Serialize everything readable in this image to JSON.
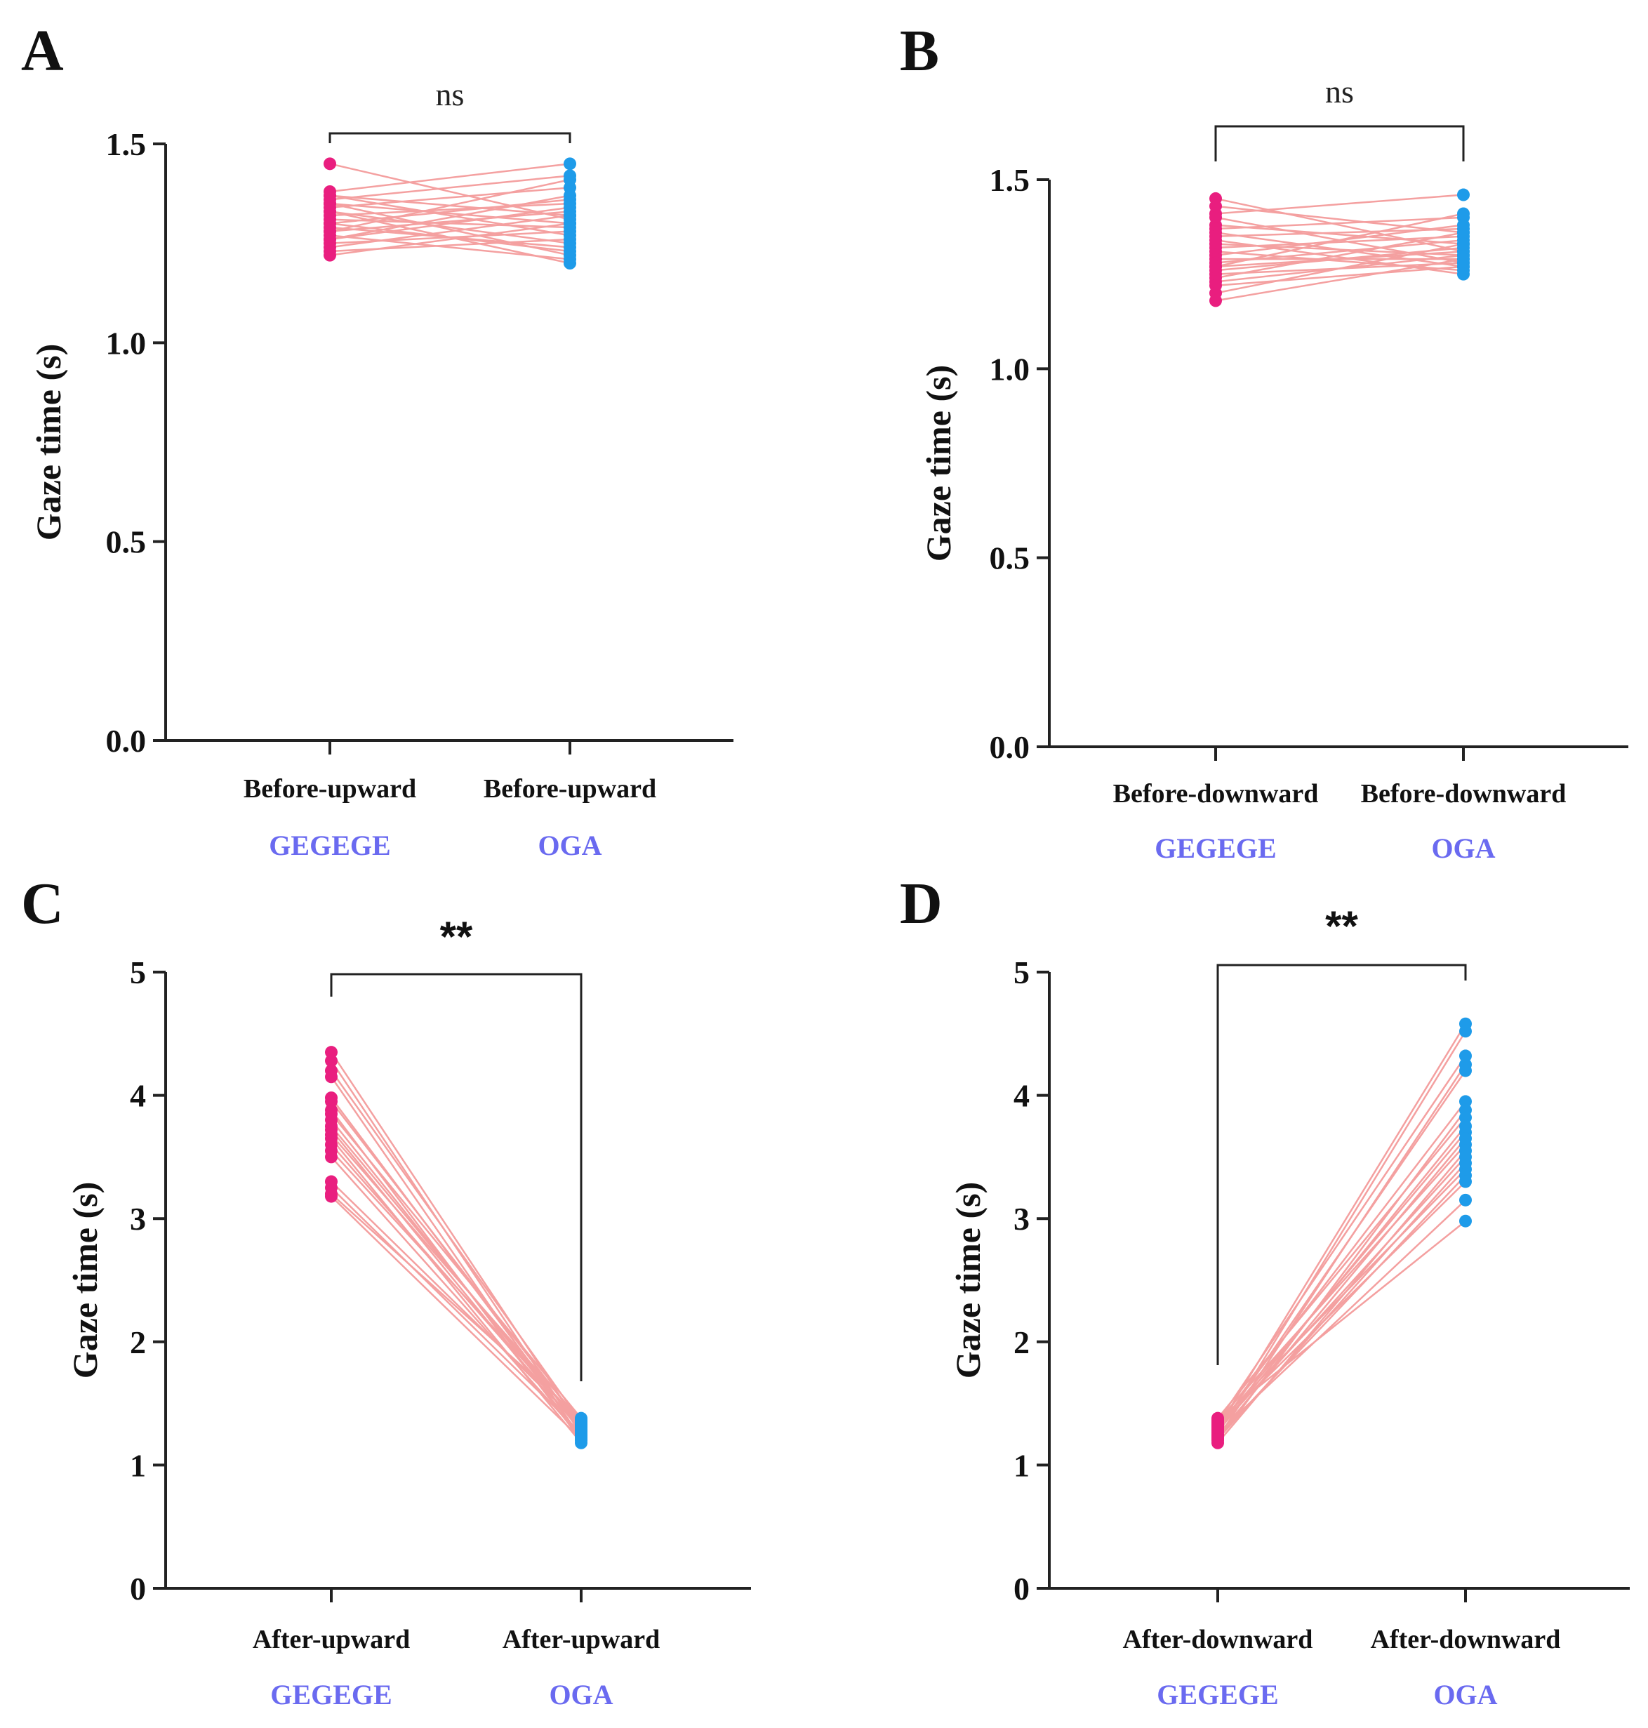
{
  "colors": {
    "line": "#f4a0a0",
    "gegege_point": "#e91e7f",
    "oga_point": "#1e9be9",
    "group_label": "#6a6af0",
    "axis": "#222222"
  },
  "chart_data": [
    {
      "panel": "A",
      "type": "line",
      "xlabel": "",
      "ylabel": "Gaze time (s)",
      "ylim": [
        0,
        1.5
      ],
      "yticks": [
        "0.0",
        "0.5",
        "1.0",
        "1.5"
      ],
      "categories": [
        "Before-upward",
        "Before-upward"
      ],
      "groups": [
        "GEGEGE",
        "OGA"
      ],
      "significance": "ns",
      "pairs": [
        [
          1.45,
          1.31
        ],
        [
          1.38,
          1.45
        ],
        [
          1.37,
          1.27
        ],
        [
          1.36,
          1.42
        ],
        [
          1.35,
          1.22
        ],
        [
          1.34,
          1.39
        ],
        [
          1.33,
          1.25
        ],
        [
          1.32,
          1.35
        ],
        [
          1.31,
          1.29
        ],
        [
          1.3,
          1.36
        ],
        [
          1.29,
          1.24
        ],
        [
          1.28,
          1.33
        ],
        [
          1.27,
          1.21
        ],
        [
          1.26,
          1.37
        ],
        [
          1.25,
          1.28
        ],
        [
          1.24,
          1.32
        ],
        [
          1.23,
          1.26
        ],
        [
          1.22,
          1.3
        ],
        [
          1.33,
          1.2
        ],
        [
          1.28,
          1.41
        ],
        [
          1.35,
          1.3
        ],
        [
          1.3,
          1.23
        ],
        [
          1.26,
          1.34
        ],
        [
          1.37,
          1.32
        ]
      ]
    },
    {
      "panel": "B",
      "type": "line",
      "xlabel": "",
      "ylabel": "Gaze time (s)",
      "ylim": [
        0,
        1.5
      ],
      "yticks": [
        "0.0",
        "0.5",
        "1.0",
        "1.5"
      ],
      "categories": [
        "Before-downward",
        "Before-downward"
      ],
      "groups": [
        "GEGEGE",
        "OGA"
      ],
      "significance": "ns",
      "pairs": [
        [
          1.45,
          1.31
        ],
        [
          1.43,
          1.36
        ],
        [
          1.41,
          1.46
        ],
        [
          1.4,
          1.28
        ],
        [
          1.38,
          1.33
        ],
        [
          1.37,
          1.4
        ],
        [
          1.36,
          1.27
        ],
        [
          1.35,
          1.37
        ],
        [
          1.33,
          1.3
        ],
        [
          1.32,
          1.35
        ],
        [
          1.31,
          1.26
        ],
        [
          1.3,
          1.38
        ],
        [
          1.29,
          1.29
        ],
        [
          1.28,
          1.34
        ],
        [
          1.27,
          1.31
        ],
        [
          1.26,
          1.32
        ],
        [
          1.25,
          1.28
        ],
        [
          1.24,
          1.36
        ],
        [
          1.23,
          1.3
        ],
        [
          1.22,
          1.27
        ],
        [
          1.2,
          1.33
        ],
        [
          1.18,
          1.29
        ],
        [
          1.34,
          1.25
        ],
        [
          1.27,
          1.41
        ]
      ]
    },
    {
      "panel": "C",
      "type": "line",
      "xlabel": "",
      "ylabel": "Gaze time (s)",
      "ylim": [
        0,
        5
      ],
      "yticks": [
        "0",
        "1",
        "2",
        "3",
        "4",
        "5"
      ],
      "categories": [
        "After-upward",
        "After-upward"
      ],
      "groups": [
        "GEGEGE",
        "OGA"
      ],
      "significance": "**",
      "pairs": [
        [
          4.35,
          1.3
        ],
        [
          4.28,
          1.25
        ],
        [
          4.2,
          1.35
        ],
        [
          4.15,
          1.22
        ],
        [
          3.98,
          1.28
        ],
        [
          3.95,
          1.33
        ],
        [
          3.88,
          1.2
        ],
        [
          3.85,
          1.38
        ],
        [
          3.8,
          1.27
        ],
        [
          3.75,
          1.31
        ],
        [
          3.72,
          1.24
        ],
        [
          3.68,
          1.36
        ],
        [
          3.65,
          1.18
        ],
        [
          3.6,
          1.29
        ],
        [
          3.55,
          1.34
        ],
        [
          3.5,
          1.23
        ],
        [
          3.3,
          1.32
        ],
        [
          3.25,
          1.26
        ],
        [
          3.2,
          1.37
        ],
        [
          3.18,
          1.21
        ]
      ]
    },
    {
      "panel": "D",
      "type": "line",
      "xlabel": "",
      "ylabel": "Gaze time (s)",
      "ylim": [
        0,
        5
      ],
      "yticks": [
        "0",
        "1",
        "2",
        "3",
        "4",
        "5"
      ],
      "categories": [
        "After-downward",
        "After-downward"
      ],
      "groups": [
        "GEGEGE",
        "OGA"
      ],
      "significance": "**",
      "pairs": [
        [
          1.3,
          4.58
        ],
        [
          1.25,
          4.52
        ],
        [
          1.35,
          4.32
        ],
        [
          1.22,
          4.25
        ],
        [
          1.28,
          4.2
        ],
        [
          1.33,
          3.95
        ],
        [
          1.2,
          3.88
        ],
        [
          1.38,
          3.82
        ],
        [
          1.27,
          3.75
        ],
        [
          1.31,
          3.7
        ],
        [
          1.24,
          3.65
        ],
        [
          1.36,
          3.6
        ],
        [
          1.18,
          3.55
        ],
        [
          1.29,
          3.5
        ],
        [
          1.34,
          3.4
        ],
        [
          1.23,
          3.35
        ],
        [
          1.32,
          3.3
        ],
        [
          1.26,
          3.15
        ],
        [
          1.37,
          2.98
        ],
        [
          1.21,
          3.45
        ]
      ]
    }
  ]
}
